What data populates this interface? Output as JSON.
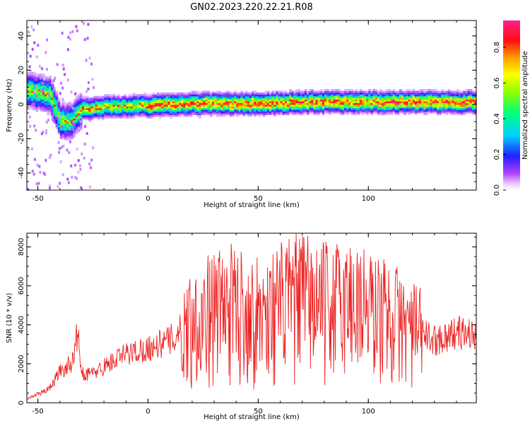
{
  "title": "GN02.2023.220.22.21.R08",
  "colors": {
    "snr_line": "#ee2222",
    "background": "#ffffff",
    "axes": "#000000"
  },
  "chart_data": [
    {
      "type": "heatmap",
      "xlabel": "Height of straight line (km)",
      "ylabel": "Frequency (Hz)",
      "xlim": [
        -55,
        149
      ],
      "ylim": [
        -50,
        49
      ],
      "x_ticks": [
        -50,
        0,
        50,
        100
      ],
      "y_ticks": [
        -40,
        -20,
        0,
        20,
        40
      ],
      "colorbar": {
        "label": "Normalized spectral amplitude",
        "range": [
          0.0,
          0.95
        ],
        "ticks": [
          0.0,
          0.2,
          0.4,
          0.6,
          0.8
        ]
      },
      "ridge": {
        "description_points_x_km": [
          -55,
          -45,
          -40,
          -35,
          -30,
          -20,
          0,
          25,
          50,
          75,
          100,
          125,
          149
        ],
        "center_freq_hz": [
          8,
          5,
          -10,
          -10,
          -3,
          -2,
          -1,
          0,
          0,
          1,
          1,
          1,
          1
        ]
      }
    },
    {
      "type": "line",
      "xlabel": "Height of straight line (km)",
      "ylabel": "SNR (10 * v/v)",
      "xlim": [
        -55,
        149
      ],
      "ylim": [
        0,
        8700
      ],
      "x_ticks": [
        -50,
        0,
        50,
        100
      ],
      "y_ticks": [
        0,
        2000,
        4000,
        6000,
        8000
      ],
      "series": [
        {
          "envelope_x_km": [
            -55,
            -45,
            -40,
            -35,
            -32,
            -30,
            -25,
            -18,
            -10,
            0,
            10,
            20,
            30,
            40,
            50,
            60,
            70,
            80,
            90,
            95,
            100,
            110,
            120,
            130,
            140,
            149
          ],
          "envelope_y": [
            200,
            700,
            1600,
            2000,
            3500,
            1500,
            1500,
            2000,
            2500,
            2800,
            3200,
            4200,
            4800,
            5000,
            4500,
            5000,
            5400,
            5000,
            5200,
            5300,
            4800,
            4500,
            3800,
            3200,
            3600,
            3500
          ]
        }
      ]
    }
  ]
}
